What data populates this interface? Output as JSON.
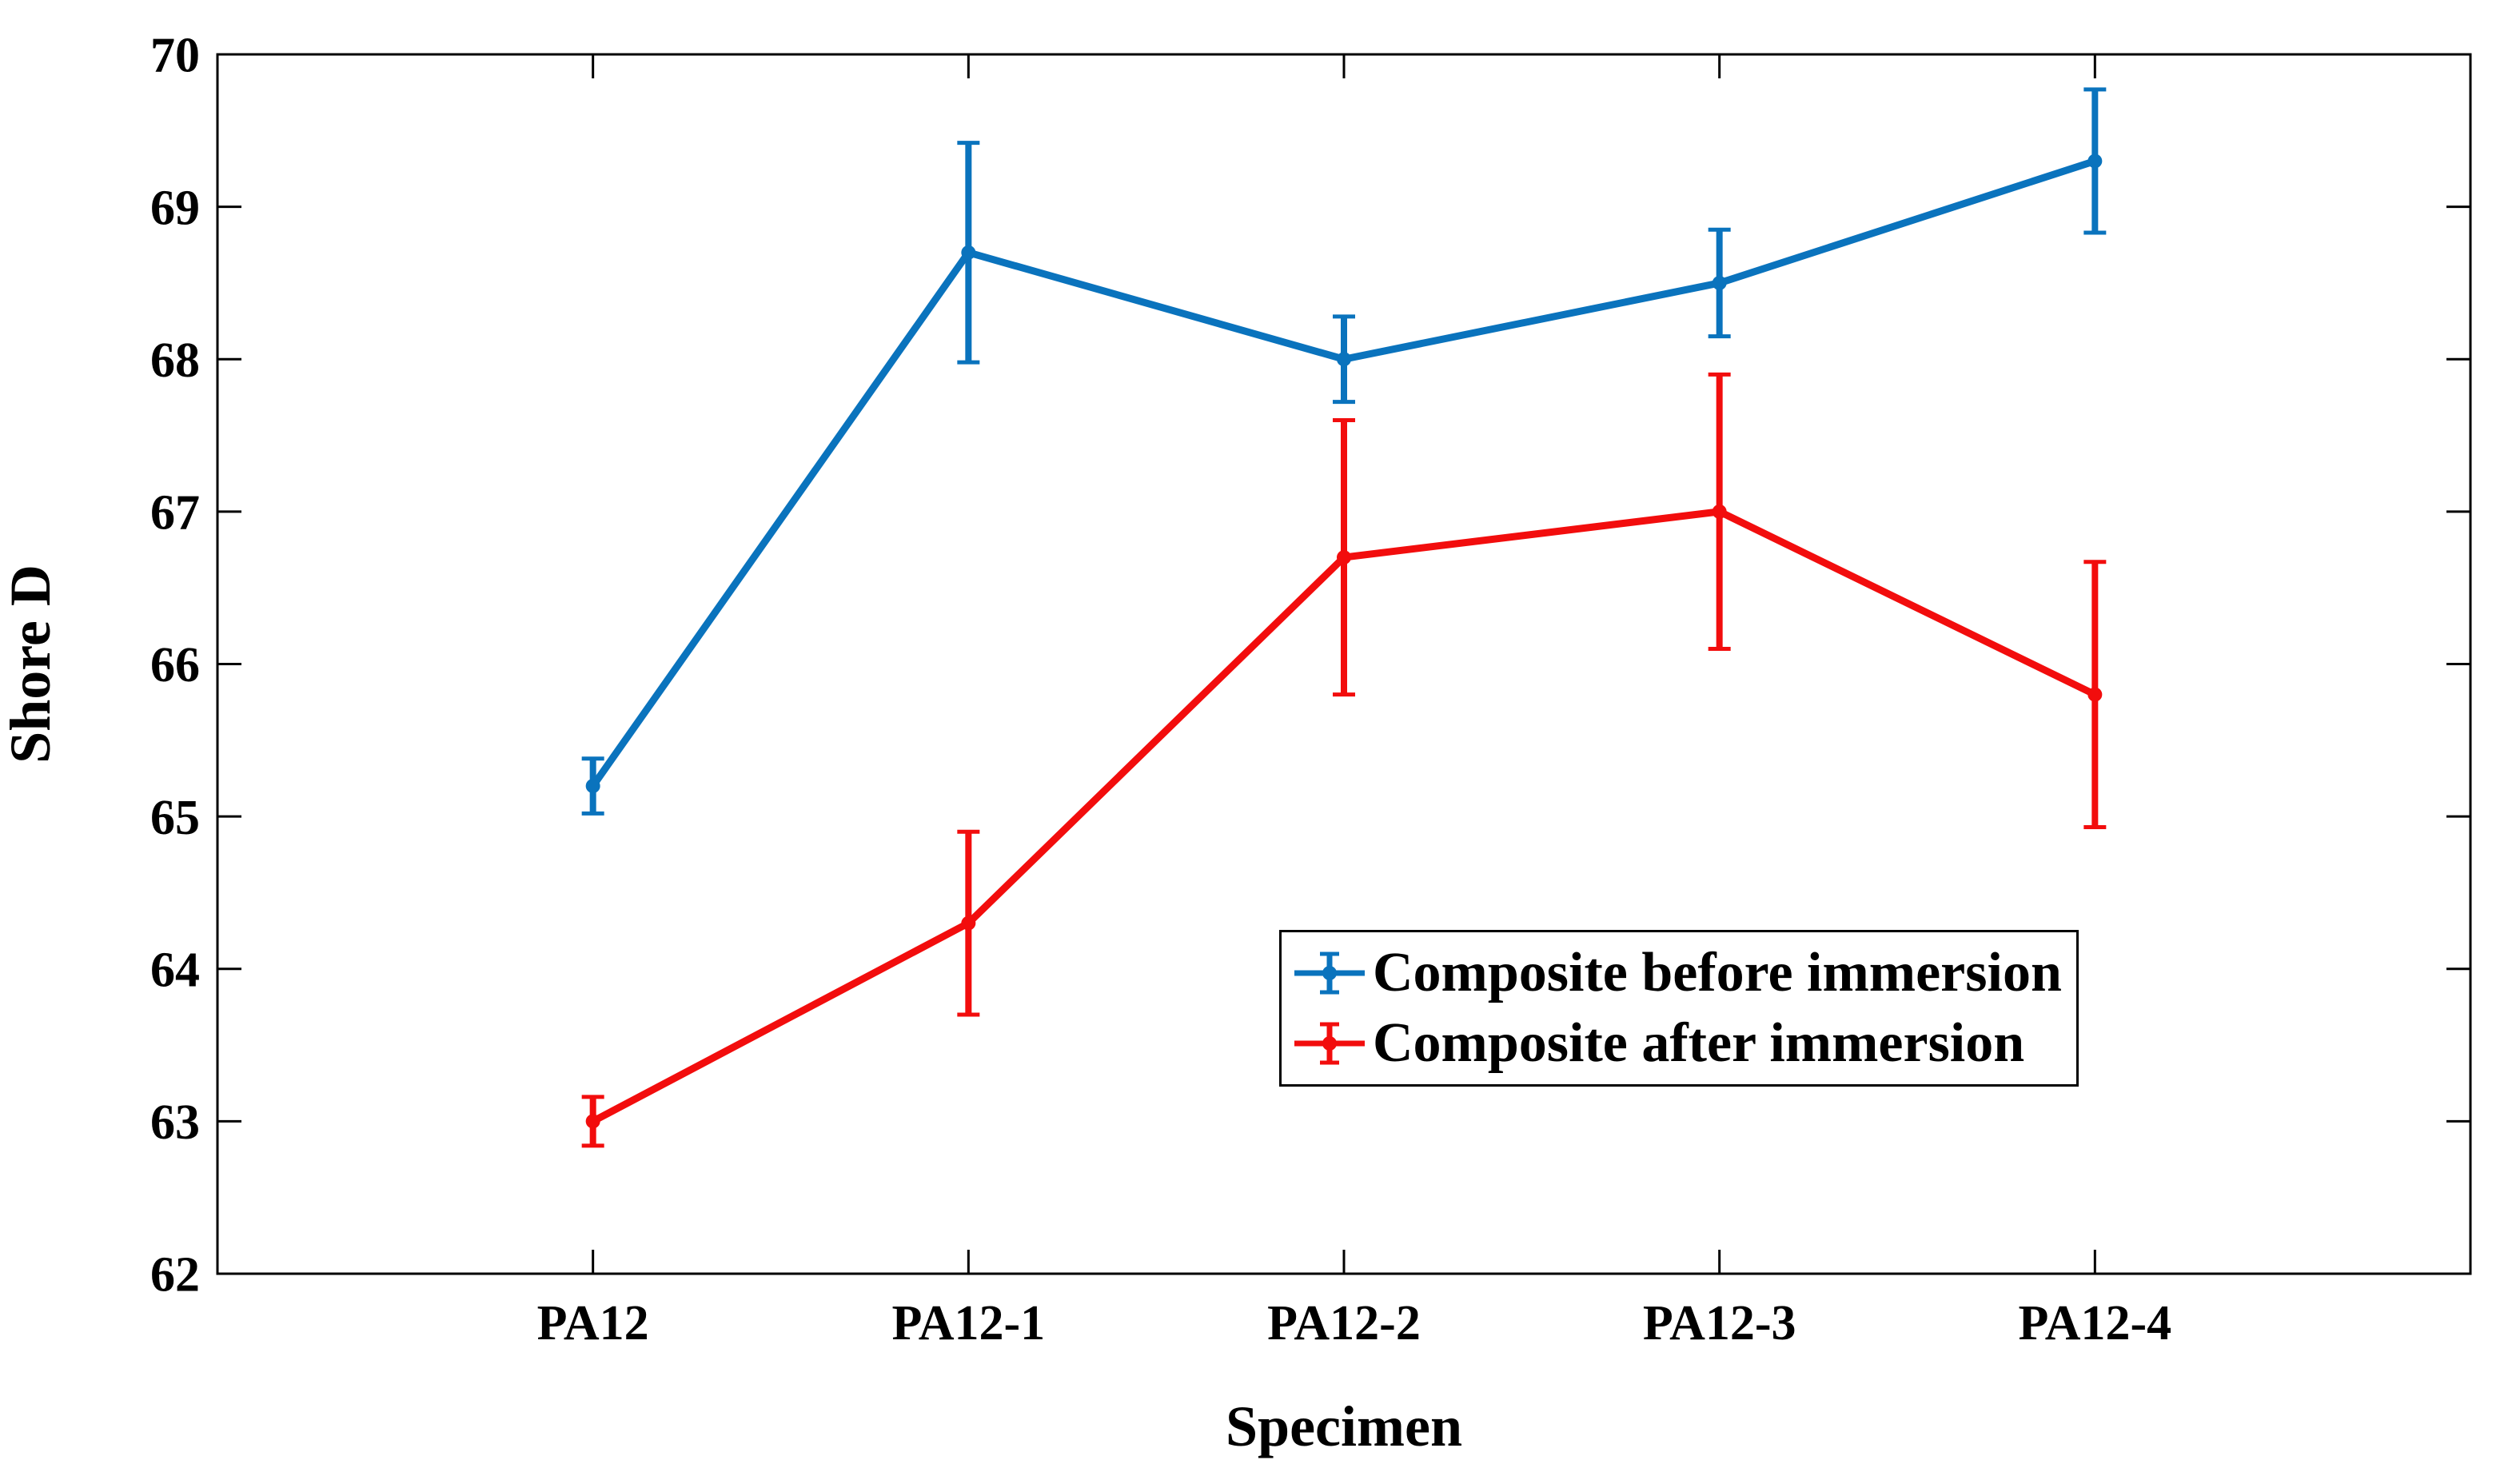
{
  "figure": {
    "background": "#ffffff",
    "text_color": "#000000",
    "axis_color": "#000000"
  },
  "chart_data": {
    "type": "line",
    "title": "",
    "xlabel": "Specimen",
    "ylabel": "Shore D",
    "categories": [
      "PA12",
      "PA12-1",
      "PA12-2",
      "PA12-3",
      "PA12-4"
    ],
    "ylim": [
      62,
      70
    ],
    "yticks": [
      62,
      63,
      64,
      65,
      66,
      67,
      68,
      69,
      70
    ],
    "grid": false,
    "legend_position": "middle-right",
    "series": [
      {
        "name": "Composite before immersion",
        "color": "#0a73bd",
        "values": [
          65.2,
          68.7,
          68.0,
          68.5,
          69.3
        ],
        "errors": [
          0.18,
          0.72,
          0.28,
          0.35,
          0.47
        ]
      },
      {
        "name": "Composite after immersion",
        "color": "#f20d0d",
        "values": [
          63.0,
          64.3,
          66.7,
          67.0,
          65.8
        ],
        "errors": [
          0.16,
          0.6,
          0.9,
          0.9,
          0.87
        ]
      }
    ]
  }
}
